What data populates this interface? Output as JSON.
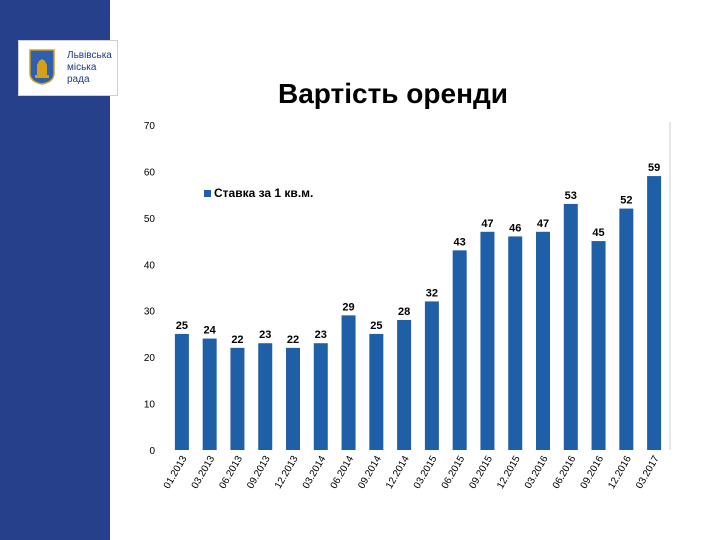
{
  "logo": {
    "lines": [
      "Львівська",
      "міська",
      "рада"
    ]
  },
  "colors": {
    "sidebar": "#27408b",
    "bar": "#1f5fa8"
  },
  "chart_data": {
    "type": "bar",
    "title": "Вартість оренди",
    "categories": [
      "01.2013",
      "03.2013",
      "06.2013",
      "09.2013",
      "12.2013",
      "03.2014",
      "06.2014",
      "09.2014",
      "12.2014",
      "03.2015",
      "06.2015",
      "09.2015",
      "12.2015",
      "03.2016",
      "06.2016",
      "09.2016",
      "12.2016",
      "03.2017"
    ],
    "series": [
      {
        "name": "Ставка за 1 кв.м.",
        "values": [
          25,
          24,
          22,
          23,
          22,
          23,
          29,
          25,
          28,
          32,
          43,
          47,
          46,
          47,
          53,
          45,
          52,
          59
        ]
      }
    ],
    "yticks": [
      0,
      10,
      20,
      30,
      40,
      50,
      60,
      70
    ],
    "ylim": [
      0,
      70
    ],
    "legend": "top-left",
    "grid": false
  }
}
